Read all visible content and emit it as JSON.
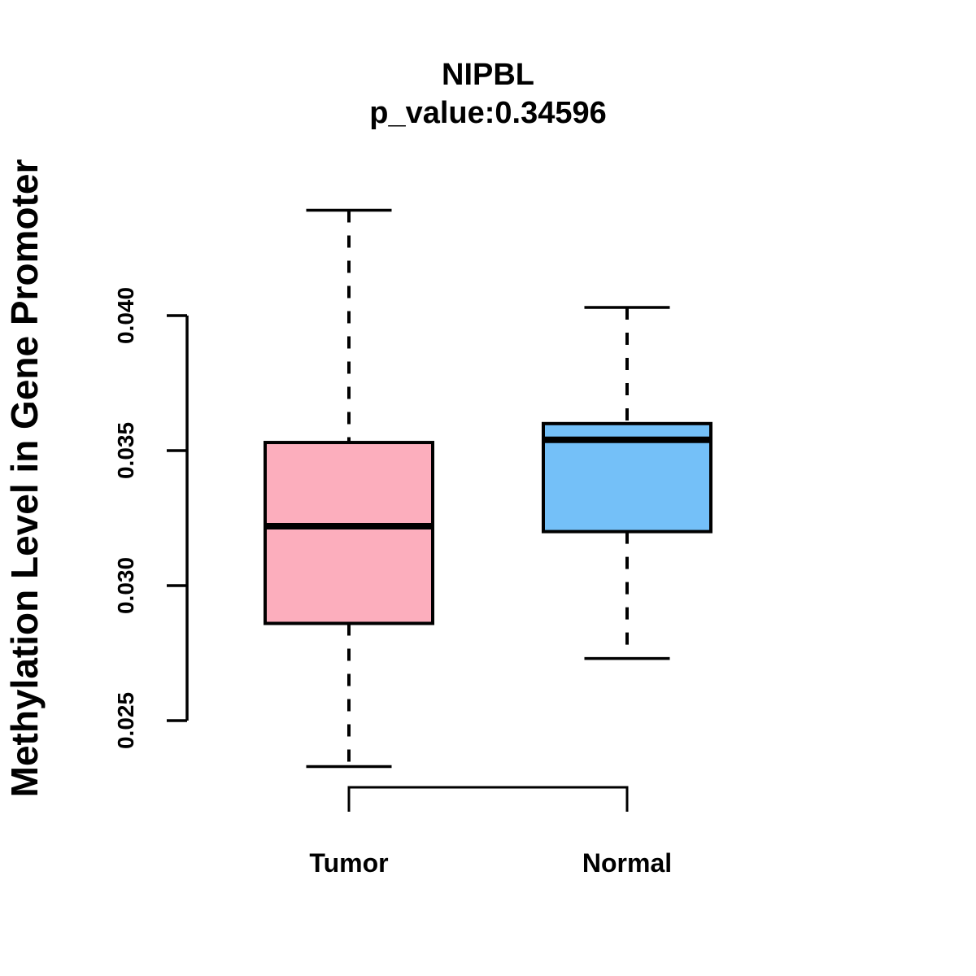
{
  "title": "NIPBL",
  "subtitle": "p_value:0.34596",
  "chart_data": {
    "type": "boxplot",
    "title": "NIPBL",
    "subtitle": "p_value:0.34596",
    "ylabel": "Methylation Level in Gene Promoter",
    "xlabel": "",
    "categories": [
      "Tumor",
      "Normal"
    ],
    "yticks": [
      0.025,
      0.03,
      0.035,
      0.04
    ],
    "ytick_labels": [
      "0.025",
      "0.030",
      "0.035",
      "0.040"
    ],
    "axis_range": [
      0.025,
      0.04
    ],
    "grid": false,
    "legend": "none",
    "series": [
      {
        "name": "Tumor",
        "lower_whisker": 0.0233,
        "q1": 0.0286,
        "median": 0.0322,
        "q3": 0.0353,
        "upper_whisker": 0.0439,
        "outliers": [],
        "fill_color": "#FCAEBD"
      },
      {
        "name": "Normal",
        "lower_whisker": 0.0273,
        "q1": 0.032,
        "median": 0.0354,
        "q3": 0.036,
        "upper_whisker": 0.0403,
        "outliers": [],
        "fill_color": "#74C0F8"
      }
    ],
    "colors": {
      "tumor_fill": "#FCAEBD",
      "normal_fill": "#74C0F8",
      "stroke": "#000000",
      "background": "#FFFFFF"
    }
  }
}
